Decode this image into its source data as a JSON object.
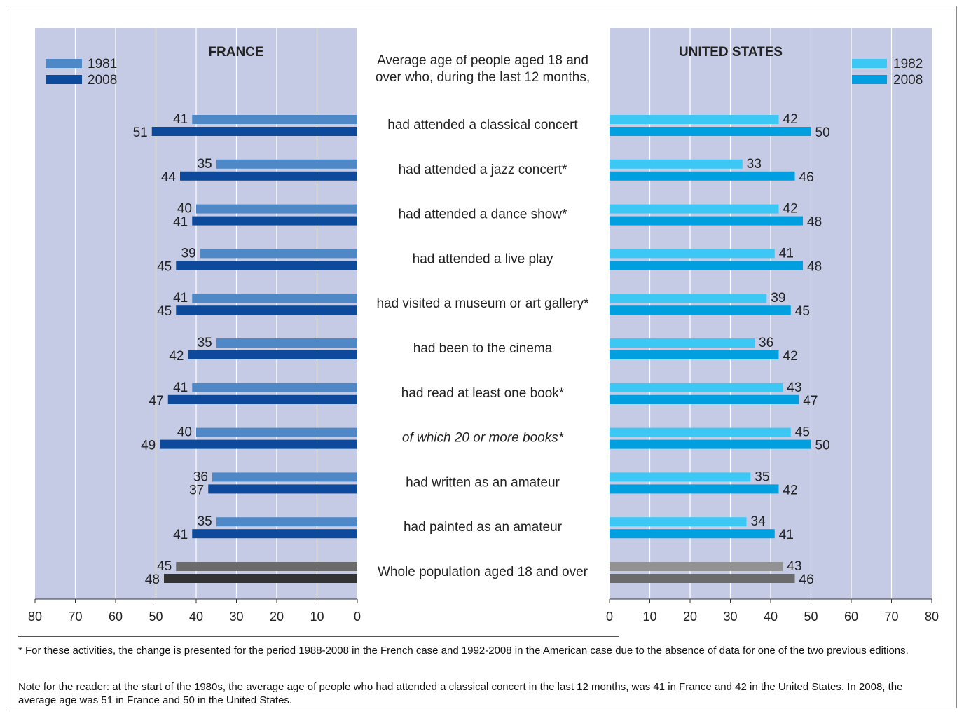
{
  "chart_data": {
    "type": "bar",
    "orientation": "horizontal-butterfly",
    "title": "Average age of people aged 18 and over who, during the last 12 months,",
    "categories": [
      "had attended a classical concert",
      "had attended a jazz concert*",
      "had attended a dance show*",
      "had attended a live play",
      "had visited a museum or art gallery*",
      "had been to the cinema",
      "had read at least one book*",
      "of which 20 or more books*",
      "had written as an amateur",
      "had painted as an amateur",
      "Whole population aged 18 and over"
    ],
    "panels": [
      {
        "title": "FRANCE",
        "side": "left",
        "legend_placement": "top-left",
        "series": [
          {
            "name": "1981",
            "color": "#4f88c6",
            "values": [
              41,
              35,
              40,
              39,
              41,
              35,
              41,
              40,
              36,
              35,
              45
            ]
          },
          {
            "name": "2008",
            "color": "#0e4a9c",
            "values": [
              51,
              44,
              41,
              45,
              45,
              42,
              47,
              49,
              37,
              41,
              48
            ]
          }
        ]
      },
      {
        "title": "UNITED STATES",
        "side": "right",
        "legend_placement": "top-right",
        "series": [
          {
            "name": "1982",
            "color": "#3dc7f4",
            "values": [
              42,
              33,
              42,
              41,
              39,
              36,
              43,
              45,
              35,
              34,
              43
            ]
          },
          {
            "name": "2008",
            "color": "#009fe0",
            "values": [
              50,
              46,
              48,
              48,
              45,
              42,
              47,
              50,
              42,
              41,
              46
            ]
          }
        ]
      }
    ],
    "total_row_colors": {
      "france_first": "#6b6b6b",
      "france_second": "#333333",
      "us_first": "#929292",
      "us_second": "#6b6b6b"
    },
    "xlim": [
      0,
      80
    ],
    "xticks": [
      0,
      10,
      20,
      30,
      40,
      50,
      60,
      70,
      80
    ],
    "grid": true,
    "panel_background": "#c5cbe5"
  },
  "notes": {
    "footnote": "* For these activities, the change is presented for the period 1988-2008 in the French case and 1992-2008 in the American case due to the absence of data for one of the two previous editions.",
    "reader_note": "Note for the reader: at the start of the 1980s, the average age of people who had attended a classical concert in the last 12 months, was 41 in France and 42 in the United States. In 2008, the average age was 51 in France and 50 in the United States."
  }
}
